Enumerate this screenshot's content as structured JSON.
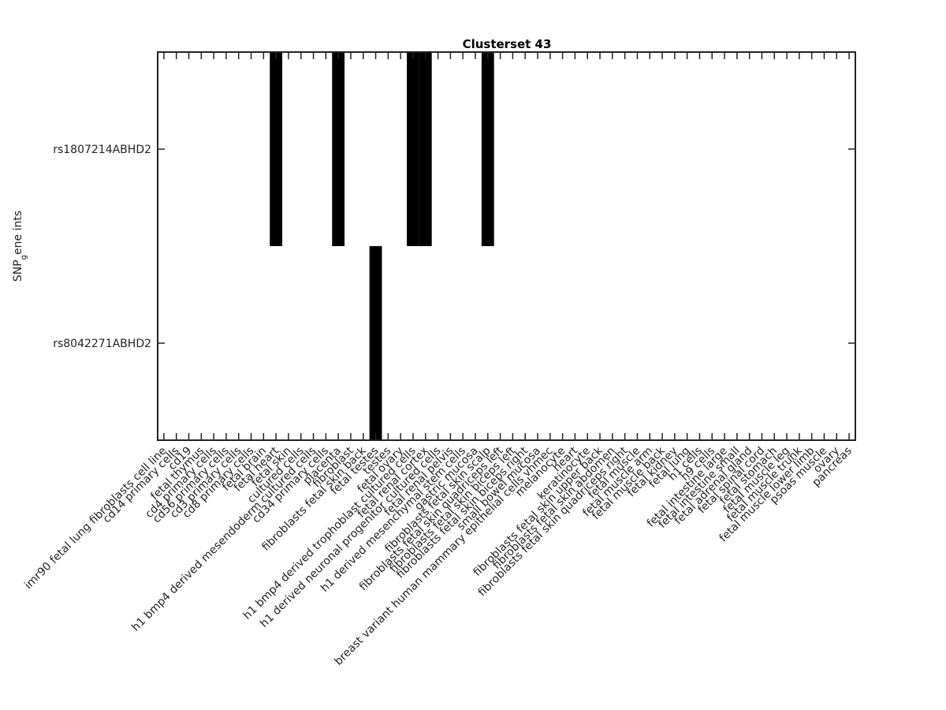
{
  "chart_data": {
    "type": "heatmap",
    "title": "Clusterset 43",
    "ylabel": "SNP_gene ints",
    "xlabel": "",
    "grid": false,
    "legend": "none",
    "colors": {
      "filled": "#000000",
      "empty": "#ffffff"
    },
    "x_categories": [
      "imr90 fetal lung fibroblasts cell line",
      "cd14 primary cells",
      "cd19",
      "fetal thymus",
      "cd4 primary cells",
      "cd56 primary cells",
      "cd3 primary cells",
      "cd8 primary cells",
      "fetal brain",
      "fetal heart",
      "fetal skin",
      "cultured cells",
      "h1 bmp4 derived mesendoderm cultured cells",
      "cd34 primary cells",
      "placenta",
      "fibroblast",
      "fibroblasts fetal skin back",
      "fetal testes",
      "testes",
      "fetal ovary",
      "h1 bmp4 derived trophoblast cultured cells",
      "fetal renal cortex",
      "h1 derived neuronal progenitor cultured cells",
      "fetal renal pelvis",
      "h1 derived mesenchymal stem cells",
      "gastric mucosa",
      "fibroblasts fetal skin scalp",
      "fibroblasts fetal skin quadriceps left",
      "fibroblasts fetal skin biceps left",
      "fibroblasts fetal skin biceps right",
      "small bowel mucosa",
      "breast variant human mammary epithelial cells vhmec",
      "melanocyte",
      "heart",
      "keratinocyte",
      "fibroblasts fetal skin upper back",
      "fibroblasts fetal skin abdomen",
      "fibroblasts fetal skin quadriceps right",
      "fetal muscle",
      "fetal muscle arm",
      "fetal muscle back",
      "fetal kidney",
      "fetal lung",
      "h1 cells",
      "h9 cells",
      "fetal intestine large",
      "fetal intestine small",
      "fetal adrenal gland",
      "fetal spinal cord",
      "fetal stomach",
      "fetal muscle leg",
      "fetal muscle trunk",
      "fetal muscle lower limb",
      "psoas muscle",
      "ovary",
      "pancreas"
    ],
    "y_categories": [
      "rs1807214ABHD2",
      "rs8042271ABHD2"
    ],
    "values": [
      [
        0,
        0,
        0,
        0,
        0,
        0,
        0,
        0,
        0,
        1,
        0,
        0,
        0,
        0,
        1,
        0,
        0,
        0,
        0,
        0,
        1,
        1,
        0,
        0,
        0,
        0,
        1,
        0,
        0,
        0,
        0,
        0,
        0,
        0,
        0,
        0,
        0,
        0,
        0,
        0,
        0,
        0,
        0,
        0,
        0,
        0,
        0,
        0,
        0,
        0,
        0,
        0,
        0,
        0,
        0,
        0
      ],
      [
        0,
        0,
        0,
        0,
        0,
        0,
        0,
        0,
        0,
        0,
        0,
        0,
        0,
        0,
        0,
        0,
        0,
        1,
        0,
        0,
        0,
        0,
        0,
        0,
        0,
        0,
        0,
        0,
        0,
        0,
        0,
        0,
        0,
        0,
        0,
        0,
        0,
        0,
        0,
        0,
        0,
        0,
        0,
        0,
        0,
        0,
        0,
        0,
        0,
        0,
        0,
        0,
        0,
        0,
        0,
        0
      ]
    ]
  }
}
